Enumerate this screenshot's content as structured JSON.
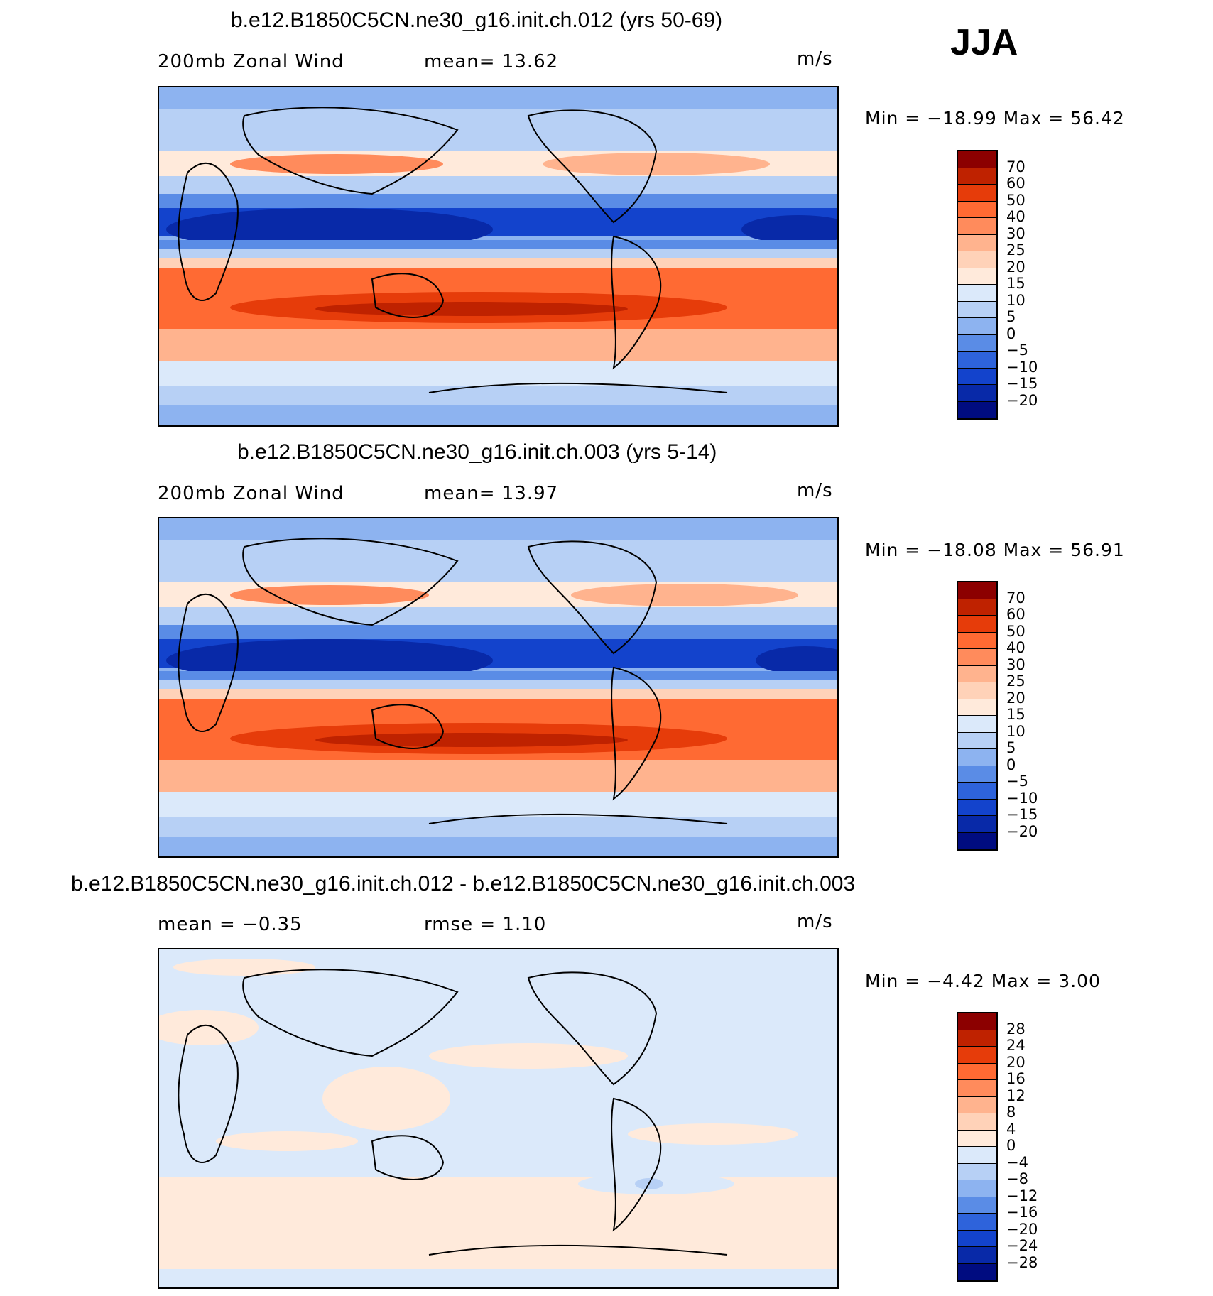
{
  "season": "JJA",
  "panels": [
    {
      "title": "b.e12.B1850C5CN.ne30_g16.init.ch.012 (yrs 50-69)",
      "left_label": "200mb Zonal Wind",
      "stat": "mean=   13.62",
      "units": "m/s",
      "minmax": "Min  =  −18.99  Max  =    56.42",
      "colorbar": {
        "levels": [
          "70",
          "60",
          "50",
          "40",
          "30",
          "25",
          "20",
          "15",
          "10",
          "5",
          "0",
          "−5",
          "−10",
          "−15",
          "−20"
        ],
        "colors": [
          "#8c0000",
          "#bf2200",
          "#e63c0a",
          "#ff6a33",
          "#ff8b5c",
          "#ffb38e",
          "#ffd2b8",
          "#ffeadb",
          "#dbe9fa",
          "#b7d0f5",
          "#8db3f0",
          "#5a8ce6",
          "#2e63db",
          "#1343cc",
          "#0829a8",
          "#000c80"
        ]
      }
    },
    {
      "title": "b.e12.B1850C5CN.ne30_g16.init.ch.003 (yrs 5-14)",
      "left_label": "200mb Zonal Wind",
      "stat": "mean=   13.97",
      "units": "m/s",
      "minmax": "Min  =  −18.08  Max  =    56.91",
      "colorbar": {
        "levels": [
          "70",
          "60",
          "50",
          "40",
          "30",
          "25",
          "20",
          "15",
          "10",
          "5",
          "0",
          "−5",
          "−10",
          "−15",
          "−20"
        ],
        "colors": [
          "#8c0000",
          "#bf2200",
          "#e63c0a",
          "#ff6a33",
          "#ff8b5c",
          "#ffb38e",
          "#ffd2b8",
          "#ffeadb",
          "#dbe9fa",
          "#b7d0f5",
          "#8db3f0",
          "#5a8ce6",
          "#2e63db",
          "#1343cc",
          "#0829a8",
          "#000c80"
        ]
      }
    },
    {
      "title": "b.e12.B1850C5CN.ne30_g16.init.ch.012 - b.e12.B1850C5CN.ne30_g16.init.ch.003",
      "left_label": "mean  =    −0.35",
      "stat": "rmse  =     1.10",
      "units": "m/s",
      "minmax": "Min  =    −4.42  Max  =      3.00",
      "colorbar": {
        "levels": [
          "28",
          "24",
          "20",
          "16",
          "12",
          "8",
          "4",
          "0",
          "−4",
          "−8",
          "−12",
          "−16",
          "−20",
          "−24",
          "−28"
        ],
        "colors": [
          "#8c0000",
          "#bf2200",
          "#e63c0a",
          "#ff6a33",
          "#ff8b5c",
          "#ffb38e",
          "#ffd2b8",
          "#ffeadb",
          "#dbe9fa",
          "#b7d0f5",
          "#8db3f0",
          "#5a8ce6",
          "#2e63db",
          "#1343cc",
          "#0829a8",
          "#000c80"
        ]
      }
    }
  ]
}
